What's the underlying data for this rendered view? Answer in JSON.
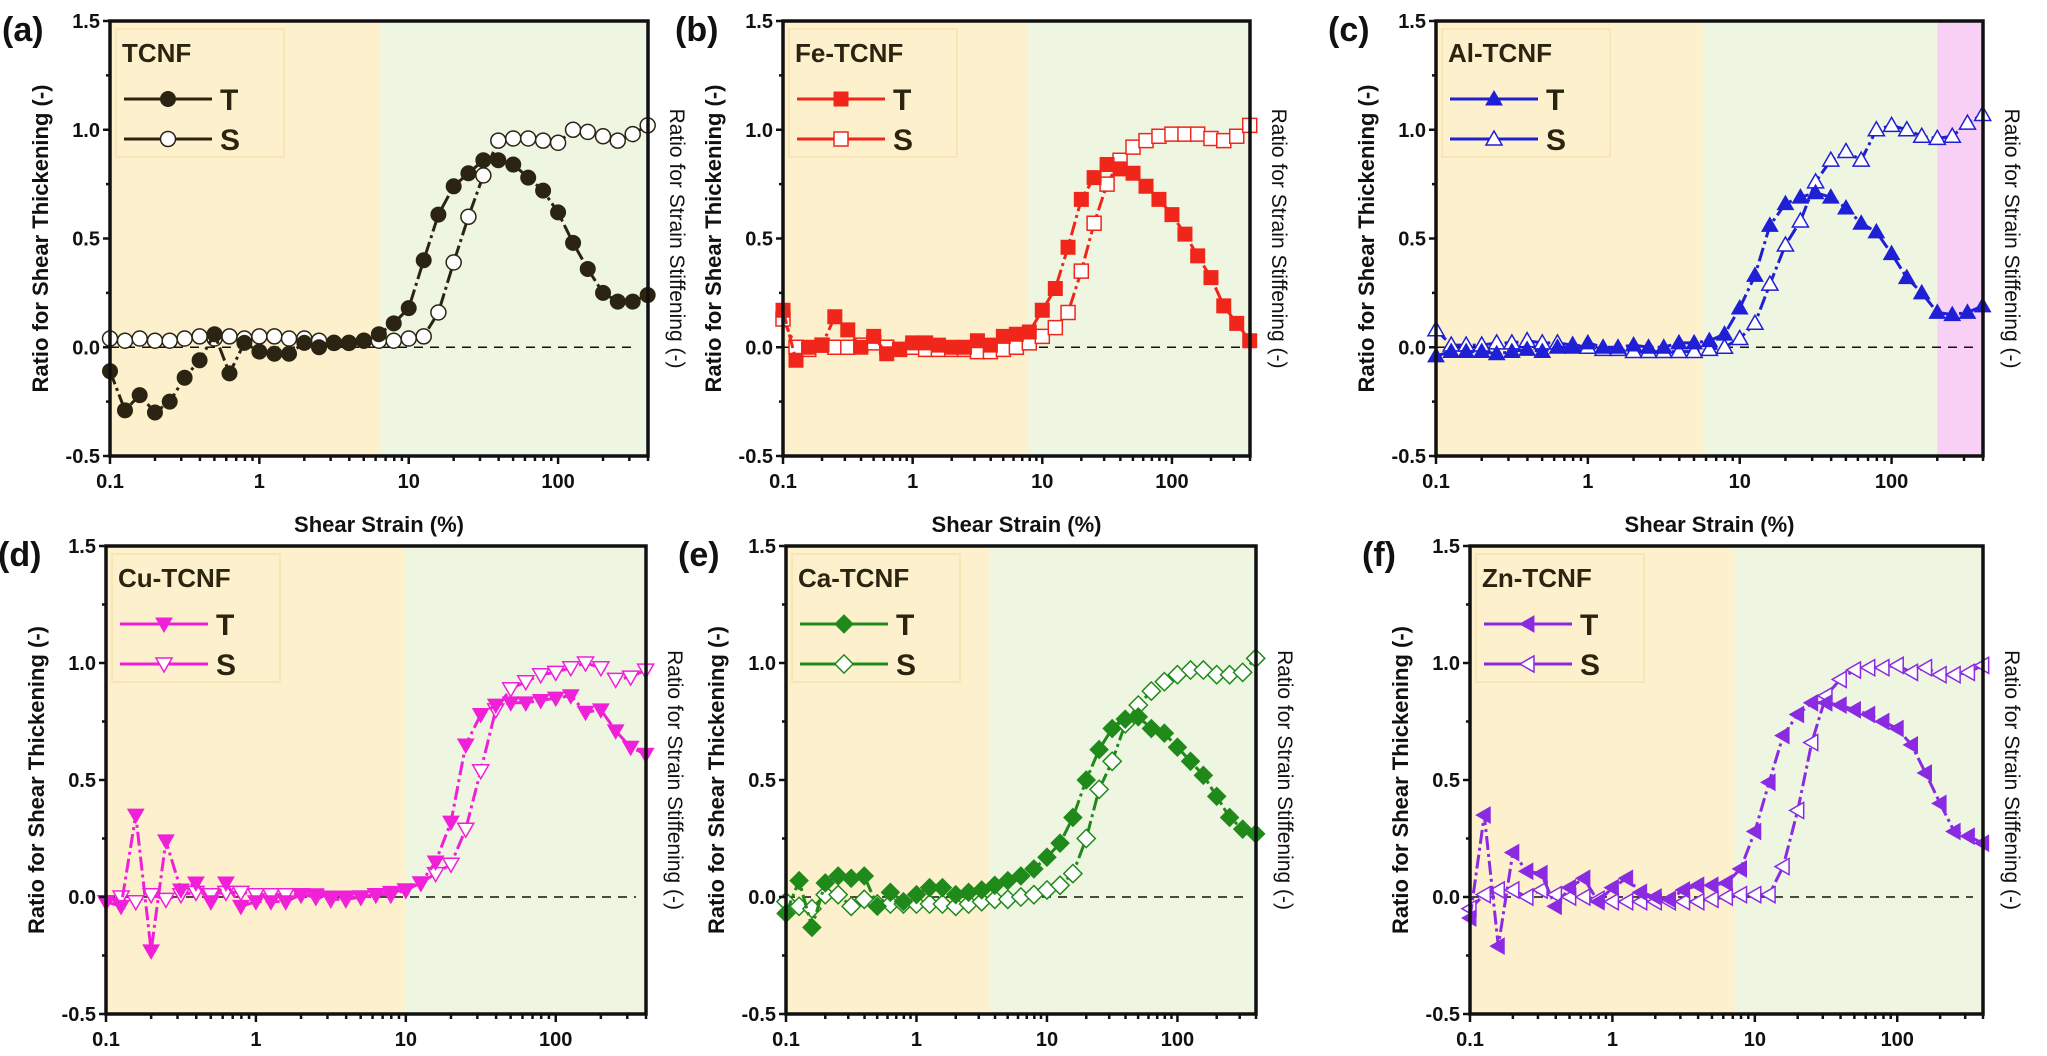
{
  "figure": {
    "x_tick_labels": [
      "0.1",
      "1",
      "10",
      "100"
    ],
    "y_tick_labels": [
      "-0.5",
      "0.0",
      "0.5",
      "1.0",
      "1.5"
    ],
    "colors": {
      "region_low": "#fdf0cc",
      "region_mid": "#eef6e2",
      "region_high": "#f8cff5",
      "axis": "#111111",
      "reference_line": "#111111"
    }
  },
  "chart_data": [
    {
      "panel_label": "(a)",
      "type": "scatter",
      "legend_title": "TCNF",
      "legend_position": "top-left",
      "title": "",
      "xlabel": "Shear Strain (%)",
      "ylabel": "Ratio for Shear Thickening (-)",
      "ylabel_right": "Ratio for Strain Stiffening (-)",
      "xscale": "log",
      "xlim": [
        0.1,
        400
      ],
      "ylim": [
        -0.5,
        1.5
      ],
      "y_ticks": [
        -0.5,
        0.0,
        0.5,
        1.0,
        1.5
      ],
      "x_ticks": [
        0.1,
        1,
        10,
        100
      ],
      "reference_line_y": 0.0,
      "regions": [
        {
          "name": "low",
          "from": 0.1,
          "to": 6.5,
          "color": "#fdf0cc"
        },
        {
          "name": "mid",
          "from": 6.5,
          "to": 400,
          "color": "#eef6e2"
        }
      ],
      "color": "#2b2413",
      "marker": "circle",
      "x": [
        0.1,
        0.126,
        0.158,
        0.2,
        0.251,
        0.316,
        0.398,
        0.501,
        0.631,
        0.794,
        1,
        1.26,
        1.58,
        2,
        2.51,
        3.16,
        3.98,
        5.01,
        6.31,
        7.94,
        10,
        12.6,
        15.8,
        20,
        25.1,
        31.6,
        39.8,
        50.1,
        63.1,
        79.4,
        100,
        126,
        158,
        200,
        251,
        316,
        398
      ],
      "series": [
        {
          "name": "T",
          "filled": true,
          "values": [
            -0.11,
            -0.29,
            -0.22,
            -0.3,
            -0.25,
            -0.14,
            -0.06,
            0.06,
            -0.12,
            0.02,
            -0.02,
            -0.03,
            -0.03,
            0.02,
            0.0,
            0.02,
            0.02,
            0.03,
            0.06,
            0.11,
            0.18,
            0.4,
            0.61,
            0.74,
            0.8,
            0.86,
            0.86,
            0.84,
            0.78,
            0.72,
            0.62,
            0.48,
            0.36,
            0.25,
            0.21,
            0.21,
            0.24
          ]
        },
        {
          "name": "S",
          "filled": false,
          "values": [
            0.04,
            0.03,
            0.04,
            0.03,
            0.03,
            0.04,
            0.05,
            0.04,
            0.05,
            0.04,
            0.05,
            0.05,
            0.04,
            0.04,
            0.03,
            0.02,
            0.02,
            0.03,
            0.03,
            0.03,
            0.04,
            0.05,
            0.16,
            0.39,
            0.6,
            0.79,
            0.95,
            0.96,
            0.96,
            0.95,
            0.94,
            1.0,
            0.99,
            0.97,
            0.95,
            0.98,
            1.02
          ]
        }
      ]
    },
    {
      "panel_label": "(b)",
      "type": "scatter",
      "legend_title": "Fe-TCNF",
      "legend_position": "top-left",
      "title": "",
      "xlabel": "Shear Strain (%)",
      "ylabel": "Ratio for Shear Thickening (-)",
      "ylabel_right": "Ratio for Strain Stiffening (-)",
      "xscale": "log",
      "xlim": [
        0.1,
        400
      ],
      "ylim": [
        -0.5,
        1.5
      ],
      "y_ticks": [
        -0.5,
        0.0,
        0.5,
        1.0,
        1.5
      ],
      "x_ticks": [
        0.1,
        1,
        10,
        100
      ],
      "reference_line_y": 0.0,
      "regions": [
        {
          "name": "low",
          "from": 0.1,
          "to": 7.8,
          "color": "#fdf0cc"
        },
        {
          "name": "mid",
          "from": 7.8,
          "to": 400,
          "color": "#eef6e2"
        }
      ],
      "color": "#f0261a",
      "marker": "square",
      "x": [
        0.1,
        0.126,
        0.158,
        0.2,
        0.251,
        0.316,
        0.398,
        0.501,
        0.631,
        0.794,
        1,
        1.26,
        1.58,
        2,
        2.51,
        3.16,
        3.98,
        5.01,
        6.31,
        7.94,
        10,
        12.6,
        15.8,
        20,
        25.1,
        31.6,
        39.8,
        50.1,
        63.1,
        79.4,
        100,
        126,
        158,
        200,
        251,
        316,
        398
      ],
      "series": [
        {
          "name": "T",
          "filled": true,
          "values": [
            0.17,
            -0.06,
            0.0,
            0.01,
            0.14,
            0.08,
            0.0,
            0.05,
            -0.03,
            -0.01,
            0.02,
            0.02,
            0.01,
            0.0,
            0.0,
            0.03,
            0.01,
            0.05,
            0.06,
            0.07,
            0.17,
            0.27,
            0.46,
            0.68,
            0.78,
            0.84,
            0.82,
            0.8,
            0.74,
            0.68,
            0.61,
            0.52,
            0.42,
            0.32,
            0.19,
            0.11,
            0.03
          ]
        },
        {
          "name": "S",
          "filled": false,
          "values": [
            0.13,
            0.0,
            -0.01,
            0.01,
            0.0,
            0.0,
            0.01,
            0.02,
            0.0,
            -0.01,
            0.0,
            -0.01,
            -0.01,
            -0.01,
            -0.01,
            -0.02,
            -0.02,
            -0.01,
            0.0,
            0.02,
            0.05,
            0.09,
            0.16,
            0.35,
            0.57,
            0.75,
            0.86,
            0.92,
            0.95,
            0.97,
            0.98,
            0.98,
            0.98,
            0.96,
            0.95,
            0.97,
            1.02
          ]
        }
      ]
    },
    {
      "panel_label": "(c)",
      "type": "scatter",
      "legend_title": "Al-TCNF",
      "legend_position": "top-left",
      "title": "",
      "xlabel": "Shear Strain (%)",
      "ylabel": "Ratio for Shear Thickening (-)",
      "ylabel_right": "Ratio for Strain Stiffening (-)",
      "xscale": "log",
      "xlim": [
        0.1,
        400
      ],
      "ylim": [
        -0.5,
        1.5
      ],
      "y_ticks": [
        -0.5,
        0.0,
        0.5,
        1.0,
        1.5
      ],
      "x_ticks": [
        0.1,
        1,
        10,
        100
      ],
      "reference_line_y": 0.0,
      "regions": [
        {
          "name": "low",
          "from": 0.1,
          "to": 5.8,
          "color": "#fdf0cc"
        },
        {
          "name": "mid",
          "from": 5.8,
          "to": 200,
          "color": "#eef6e2"
        },
        {
          "name": "high",
          "from": 200,
          "to": 400,
          "color": "#f8cff5"
        }
      ],
      "color": "#1f1fd6",
      "marker": "triangle-up",
      "x": [
        0.1,
        0.126,
        0.158,
        0.2,
        0.251,
        0.316,
        0.398,
        0.501,
        0.631,
        0.794,
        1,
        1.26,
        1.58,
        2,
        2.51,
        3.16,
        3.98,
        5.01,
        6.31,
        7.94,
        10,
        12.6,
        15.8,
        20,
        25.1,
        31.6,
        39.8,
        50.1,
        63.1,
        79.4,
        100,
        126,
        158,
        200,
        251,
        316,
        398
      ],
      "series": [
        {
          "name": "T",
          "filled": true,
          "values": [
            -0.04,
            -0.02,
            -0.02,
            -0.02,
            -0.03,
            -0.02,
            -0.01,
            -0.02,
            0.0,
            0.0,
            0.02,
            0.0,
            0.0,
            0.01,
            0.0,
            0.0,
            0.02,
            0.02,
            0.03,
            0.06,
            0.18,
            0.33,
            0.56,
            0.66,
            0.69,
            0.71,
            0.69,
            0.64,
            0.57,
            0.53,
            0.43,
            0.32,
            0.25,
            0.16,
            0.15,
            0.16,
            0.19
          ]
        },
        {
          "name": "S",
          "filled": false,
          "values": [
            0.08,
            0.01,
            0.01,
            0.01,
            0.02,
            0.02,
            0.03,
            0.02,
            0.02,
            0.01,
            0.0,
            -0.01,
            -0.01,
            -0.02,
            -0.02,
            -0.02,
            -0.02,
            -0.02,
            -0.01,
            0.0,
            0.04,
            0.11,
            0.29,
            0.47,
            0.58,
            0.76,
            0.86,
            0.9,
            0.86,
            1.0,
            1.02,
            1.0,
            0.97,
            0.96,
            0.97,
            1.03,
            1.07
          ]
        }
      ]
    },
    {
      "panel_label": "(d)",
      "type": "scatter",
      "legend_title": "Cu-TCNF",
      "legend_position": "top-left",
      "title": "",
      "xlabel": "Shear Strain (%)",
      "ylabel": "Ratio for Shear Thickening (-)",
      "ylabel_right": "Ratio for Strain Stiffening (-)",
      "xscale": "log",
      "xlim": [
        0.1,
        400
      ],
      "ylim": [
        -0.5,
        1.5
      ],
      "y_ticks": [
        -0.5,
        0.0,
        0.5,
        1.0,
        1.5
      ],
      "x_ticks": [
        0.1,
        1,
        10,
        100
      ],
      "reference_line_y": 0.0,
      "regions": [
        {
          "name": "low",
          "from": 0.1,
          "to": 10,
          "color": "#fdf0cc"
        },
        {
          "name": "mid",
          "from": 10,
          "to": 400,
          "color": "#eef6e2"
        }
      ],
      "color": "#f020d8",
      "marker": "triangle-down",
      "x": [
        0.1,
        0.126,
        0.158,
        0.2,
        0.251,
        0.316,
        0.398,
        0.501,
        0.631,
        0.794,
        1,
        1.26,
        1.58,
        2,
        2.51,
        3.16,
        3.98,
        5.01,
        6.31,
        7.94,
        10,
        12.6,
        15.8,
        20,
        25.1,
        31.6,
        39.8,
        50.1,
        63.1,
        79.4,
        100,
        126,
        158,
        200,
        251,
        316,
        398
      ],
      "series": [
        {
          "name": "T",
          "filled": true,
          "values": [
            -0.02,
            -0.04,
            0.35,
            -0.23,
            0.24,
            0.03,
            0.06,
            -0.02,
            0.06,
            -0.04,
            -0.02,
            -0.02,
            -0.02,
            0.01,
            0.01,
            0.0,
            0.0,
            0.0,
            0.01,
            0.02,
            0.03,
            0.06,
            0.15,
            0.32,
            0.65,
            0.78,
            0.82,
            0.83,
            0.83,
            0.84,
            0.85,
            0.86,
            0.79,
            0.8,
            0.71,
            0.64,
            0.61
          ]
        },
        {
          "name": "S",
          "filled": false,
          "values": [
            -0.02,
            0.0,
            -0.02,
            0.01,
            -0.01,
            0.01,
            0.02,
            0.01,
            0.02,
            0.02,
            0.01,
            0.01,
            0.01,
            0.01,
            0.0,
            -0.01,
            -0.01,
            0.0,
            0.01,
            0.01,
            0.03,
            0.06,
            0.1,
            0.14,
            0.29,
            0.54,
            0.8,
            0.89,
            0.92,
            0.95,
            0.96,
            0.98,
            1.0,
            0.98,
            0.93,
            0.94,
            0.97
          ]
        }
      ]
    },
    {
      "panel_label": "(e)",
      "type": "scatter",
      "legend_title": "Ca-TCNF",
      "legend_position": "top-left",
      "title": "",
      "xlabel": "Shear Strain (%)",
      "ylabel": "Ratio for Shear Thickening (-)",
      "ylabel_right": "Ratio for Strain Stiffening (-)",
      "xscale": "log",
      "xlim": [
        0.1,
        400
      ],
      "ylim": [
        -0.5,
        1.5
      ],
      "y_ticks": [
        -0.5,
        0.0,
        0.5,
        1.0,
        1.5
      ],
      "x_ticks": [
        0.1,
        1,
        10,
        100
      ],
      "reference_line_y": 0.0,
      "regions": [
        {
          "name": "low",
          "from": 0.1,
          "to": 3.6,
          "color": "#fdf0cc"
        },
        {
          "name": "mid",
          "from": 3.6,
          "to": 400,
          "color": "#eef6e2"
        }
      ],
      "color": "#1f8a1a",
      "marker": "diamond",
      "x": [
        0.1,
        0.126,
        0.158,
        0.2,
        0.251,
        0.316,
        0.398,
        0.501,
        0.631,
        0.794,
        1,
        1.26,
        1.58,
        2,
        2.51,
        3.16,
        3.98,
        5.01,
        6.31,
        7.94,
        10,
        12.6,
        15.8,
        20,
        25.1,
        31.6,
        39.8,
        50.1,
        63.1,
        79.4,
        100,
        126,
        158,
        200,
        251,
        316,
        398
      ],
      "series": [
        {
          "name": "T",
          "filled": true,
          "values": [
            -0.07,
            0.07,
            -0.13,
            0.06,
            0.09,
            0.08,
            0.09,
            -0.04,
            0.02,
            -0.02,
            0.01,
            0.04,
            0.04,
            0.01,
            0.02,
            0.03,
            0.05,
            0.07,
            0.09,
            0.12,
            0.17,
            0.23,
            0.34,
            0.5,
            0.63,
            0.72,
            0.76,
            0.77,
            0.72,
            0.7,
            0.64,
            0.58,
            0.52,
            0.43,
            0.34,
            0.29,
            0.27
          ]
        },
        {
          "name": "S",
          "filled": false,
          "values": [
            -0.02,
            -0.04,
            -0.05,
            0.01,
            0.01,
            -0.04,
            -0.01,
            -0.03,
            -0.03,
            -0.03,
            -0.03,
            -0.03,
            -0.03,
            -0.04,
            -0.03,
            -0.02,
            -0.01,
            -0.01,
            0.0,
            0.01,
            0.03,
            0.05,
            0.1,
            0.25,
            0.46,
            0.58,
            0.74,
            0.82,
            0.88,
            0.92,
            0.95,
            0.97,
            0.97,
            0.95,
            0.95,
            0.96,
            1.02
          ]
        }
      ]
    },
    {
      "panel_label": "(f)",
      "type": "scatter",
      "legend_title": "Zn-TCNF",
      "legend_position": "top-left",
      "title": "",
      "xlabel": "Shear Strain (%)",
      "ylabel": "Ratio for Shear Thickening (-)",
      "ylabel_right": "Ratio for Strain Stiffening (-)",
      "xscale": "log",
      "xlim": [
        0.1,
        400
      ],
      "ylim": [
        -0.5,
        1.5
      ],
      "y_ticks": [
        -0.5,
        0.0,
        0.5,
        1.0,
        1.5
      ],
      "x_ticks": [
        0.1,
        1,
        10,
        100
      ],
      "reference_line_y": 0.0,
      "regions": [
        {
          "name": "low",
          "from": 0.1,
          "to": 7.2,
          "color": "#fdf0cc"
        },
        {
          "name": "mid",
          "from": 7.2,
          "to": 400,
          "color": "#eef6e2"
        }
      ],
      "color": "#8a2be2",
      "marker": "triangle-left",
      "x": [
        0.1,
        0.126,
        0.158,
        0.2,
        0.251,
        0.316,
        0.398,
        0.501,
        0.631,
        0.794,
        1,
        1.26,
        1.58,
        2,
        2.51,
        3.16,
        3.98,
        5.01,
        6.31,
        7.94,
        10,
        12.6,
        15.8,
        20,
        25.1,
        31.6,
        39.8,
        50.1,
        63.1,
        79.4,
        100,
        126,
        158,
        200,
        251,
        316,
        398
      ],
      "series": [
        {
          "name": "T",
          "filled": true,
          "values": [
            -0.09,
            0.35,
            -0.21,
            0.19,
            0.11,
            0.1,
            -0.04,
            0.04,
            0.08,
            -0.02,
            0.04,
            0.08,
            0.02,
            0.0,
            -0.01,
            0.03,
            0.05,
            0.05,
            0.06,
            0.12,
            0.28,
            0.49,
            0.69,
            0.78,
            0.83,
            0.83,
            0.82,
            0.8,
            0.78,
            0.75,
            0.72,
            0.65,
            0.53,
            0.4,
            0.28,
            0.26,
            0.23
          ]
        },
        {
          "name": "S",
          "filled": false,
          "values": [
            -0.05,
            0.01,
            0.03,
            0.03,
            0.0,
            0.03,
            0.01,
            0.0,
            0.0,
            -0.01,
            -0.02,
            -0.02,
            -0.02,
            -0.02,
            -0.02,
            -0.02,
            -0.02,
            -0.01,
            0.0,
            0.01,
            0.01,
            0.01,
            0.13,
            0.37,
            0.66,
            0.86,
            0.93,
            0.97,
            0.98,
            0.98,
            0.99,
            0.96,
            0.98,
            0.95,
            0.95,
            0.96,
            0.99
          ]
        }
      ]
    }
  ]
}
